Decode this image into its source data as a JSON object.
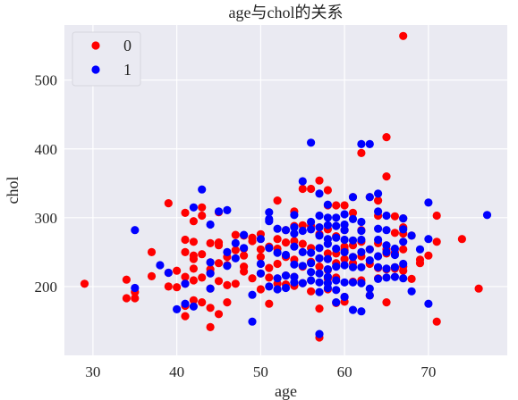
{
  "chart_data": {
    "type": "scatter",
    "title": "age与chol的关系",
    "xlabel": "age",
    "ylabel": "chol",
    "xlim": [
      26.6,
      79.4
    ],
    "ylim": [
      100,
      580
    ],
    "xticks": [
      30,
      40,
      50,
      60,
      70
    ],
    "yticks": [
      200,
      300,
      400,
      500
    ],
    "grid": true,
    "legend_position": "top-left",
    "series": [
      {
        "name": "0",
        "color": "#ff0000",
        "points": [
          [
            29,
            204
          ],
          [
            34,
            210
          ],
          [
            34,
            183
          ],
          [
            35,
            183
          ],
          [
            35,
            192
          ],
          [
            37,
            250
          ],
          [
            37,
            215
          ],
          [
            39,
            321
          ],
          [
            39,
            220
          ],
          [
            39,
            200
          ],
          [
            40,
            223
          ],
          [
            40,
            199
          ],
          [
            41,
            307
          ],
          [
            41,
            268
          ],
          [
            41,
            250
          ],
          [
            41,
            214
          ],
          [
            41,
            204
          ],
          [
            41,
            172
          ],
          [
            41,
            157
          ],
          [
            42,
            295
          ],
          [
            42,
            265
          ],
          [
            42,
            245
          ],
          [
            42,
            240
          ],
          [
            42,
            226
          ],
          [
            42,
            209
          ],
          [
            42,
            180
          ],
          [
            43,
            315
          ],
          [
            43,
            303
          ],
          [
            43,
            247
          ],
          [
            43,
            213
          ],
          [
            43,
            177
          ],
          [
            44,
            263
          ],
          [
            44,
            235
          ],
          [
            44,
            225
          ],
          [
            44,
            220
          ],
          [
            44,
            197
          ],
          [
            44,
            169
          ],
          [
            44,
            141
          ],
          [
            45,
            308
          ],
          [
            45,
            264
          ],
          [
            45,
            260
          ],
          [
            45,
            234
          ],
          [
            45,
            208
          ],
          [
            45,
            160
          ],
          [
            46,
            243
          ],
          [
            46,
            231
          ],
          [
            46,
            202
          ],
          [
            46,
            177
          ],
          [
            47,
            275
          ],
          [
            47,
            253
          ],
          [
            47,
            204
          ],
          [
            48,
            274
          ],
          [
            48,
            255
          ],
          [
            48,
            245
          ],
          [
            48,
            229
          ],
          [
            48,
            222
          ],
          [
            49,
            271
          ],
          [
            49,
            266
          ],
          [
            49,
            212
          ],
          [
            50,
            276
          ],
          [
            50,
            254
          ],
          [
            50,
            243
          ],
          [
            50,
            219
          ],
          [
            50,
            196
          ],
          [
            51,
            258
          ],
          [
            51,
            227
          ],
          [
            51,
            213
          ],
          [
            51,
            175
          ],
          [
            52,
            325
          ],
          [
            52,
            269
          ],
          [
            52,
            255
          ],
          [
            52,
            233
          ],
          [
            52,
            204
          ],
          [
            53,
            282
          ],
          [
            53,
            264
          ],
          [
            53,
            243
          ],
          [
            53,
            216
          ],
          [
            53,
            203
          ],
          [
            54,
            309
          ],
          [
            54,
            288
          ],
          [
            54,
            266
          ],
          [
            54,
            239
          ],
          [
            54,
            214
          ],
          [
            54,
            201
          ],
          [
            55,
            342
          ],
          [
            55,
            289
          ],
          [
            55,
            262
          ],
          [
            55,
            229
          ],
          [
            55,
            205
          ],
          [
            56,
            342
          ],
          [
            56,
            288
          ],
          [
            56,
            256
          ],
          [
            56,
            236
          ],
          [
            56,
            193
          ],
          [
            57,
            354
          ],
          [
            57,
            276
          ],
          [
            57,
            241
          ],
          [
            57,
            229
          ],
          [
            57,
            168
          ],
          [
            57,
            126
          ],
          [
            58,
            340
          ],
          [
            58,
            318
          ],
          [
            58,
            283
          ],
          [
            58,
            248
          ],
          [
            58,
            224
          ],
          [
            58,
            211
          ],
          [
            58,
            196
          ],
          [
            59,
            318
          ],
          [
            59,
            273
          ],
          [
            59,
            248
          ],
          [
            59,
            234
          ],
          [
            59,
            213
          ],
          [
            59,
            176
          ],
          [
            60,
            318
          ],
          [
            60,
            282
          ],
          [
            60,
            258
          ],
          [
            60,
            253
          ],
          [
            60,
            240
          ],
          [
            60,
            185
          ],
          [
            60,
            178
          ],
          [
            61,
            330
          ],
          [
            61,
            307
          ],
          [
            61,
            260
          ],
          [
            61,
            243
          ],
          [
            61,
            234
          ],
          [
            61,
            207
          ],
          [
            62,
            394
          ],
          [
            62,
            282
          ],
          [
            62,
            265
          ],
          [
            62,
            244
          ],
          [
            62,
            209
          ],
          [
            63,
            330
          ],
          [
            63,
            254
          ],
          [
            63,
            233
          ],
          [
            63,
            187
          ],
          [
            64,
            325
          ],
          [
            64,
            303
          ],
          [
            64,
            263
          ],
          [
            64,
            227
          ],
          [
            64,
            212
          ],
          [
            65,
            417
          ],
          [
            65,
            360
          ],
          [
            65,
            254
          ],
          [
            65,
            248
          ],
          [
            65,
            225
          ],
          [
            65,
            177
          ],
          [
            66,
            302
          ],
          [
            66,
            278
          ],
          [
            66,
            249
          ],
          [
            66,
            228
          ],
          [
            66,
            226
          ],
          [
            67,
            564
          ],
          [
            67,
            299
          ],
          [
            67,
            286
          ],
          [
            67,
            277
          ],
          [
            67,
            254
          ],
          [
            67,
            229
          ],
          [
            67,
            223
          ],
          [
            68,
            274
          ],
          [
            68,
            211
          ],
          [
            69,
            239
          ],
          [
            69,
            234
          ],
          [
            70,
            245
          ],
          [
            71,
            303
          ],
          [
            71,
            265
          ],
          [
            71,
            149
          ],
          [
            74,
            269
          ],
          [
            76,
            197
          ]
        ]
      },
      {
        "name": "1",
        "color": "#0000ff",
        "points": [
          [
            35,
            282
          ],
          [
            35,
            198
          ],
          [
            38,
            231
          ],
          [
            39,
            220
          ],
          [
            40,
            167
          ],
          [
            41,
            204
          ],
          [
            41,
            175
          ],
          [
            42,
            315
          ],
          [
            42,
            171
          ],
          [
            43,
            341
          ],
          [
            44,
            290
          ],
          [
            44,
            235
          ],
          [
            44,
            219
          ],
          [
            44,
            197
          ],
          [
            45,
            309
          ],
          [
            46,
            311
          ],
          [
            46,
            250
          ],
          [
            46,
            230
          ],
          [
            47,
            263
          ],
          [
            47,
            241
          ],
          [
            48,
            275
          ],
          [
            48,
            256
          ],
          [
            49,
            188
          ],
          [
            49,
            149
          ],
          [
            50,
            269
          ],
          [
            50,
            233
          ],
          [
            50,
            219
          ],
          [
            51,
            308
          ],
          [
            51,
            298
          ],
          [
            51,
            295
          ],
          [
            51,
            256
          ],
          [
            51,
            200
          ],
          [
            52,
            284
          ],
          [
            52,
            249
          ],
          [
            52,
            212
          ],
          [
            52,
            196
          ],
          [
            53,
            282
          ],
          [
            53,
            246
          ],
          [
            53,
            216
          ],
          [
            53,
            198
          ],
          [
            54,
            304
          ],
          [
            54,
            286
          ],
          [
            54,
            277
          ],
          [
            54,
            258
          ],
          [
            54,
            232
          ],
          [
            54,
            214
          ],
          [
            54,
            206
          ],
          [
            55,
            353
          ],
          [
            55,
            281
          ],
          [
            55,
            250
          ],
          [
            55,
            230
          ],
          [
            55,
            205
          ],
          [
            56,
            409
          ],
          [
            56,
            294
          ],
          [
            56,
            283
          ],
          [
            56,
            249
          ],
          [
            56,
            234
          ],
          [
            56,
            221
          ],
          [
            56,
            209
          ],
          [
            57,
            335
          ],
          [
            57,
            303
          ],
          [
            57,
            286
          ],
          [
            57,
            274
          ],
          [
            57,
            256
          ],
          [
            57,
            241
          ],
          [
            57,
            219
          ],
          [
            57,
            206
          ],
          [
            57,
            192
          ],
          [
            57,
            131
          ],
          [
            58,
            319
          ],
          [
            58,
            300
          ],
          [
            58,
            289
          ],
          [
            58,
            269
          ],
          [
            58,
            262
          ],
          [
            58,
            240
          ],
          [
            58,
            225
          ],
          [
            58,
            214
          ],
          [
            58,
            205
          ],
          [
            58,
            198
          ],
          [
            59,
            300
          ],
          [
            59,
            288
          ],
          [
            59,
            271
          ],
          [
            59,
            255
          ],
          [
            59,
            229
          ],
          [
            59,
            209
          ],
          [
            59,
            195
          ],
          [
            59,
            177
          ],
          [
            60,
            305
          ],
          [
            60,
            290
          ],
          [
            60,
            282
          ],
          [
            60,
            268
          ],
          [
            60,
            250
          ],
          [
            60,
            231
          ],
          [
            60,
            206
          ],
          [
            60,
            185
          ],
          [
            61,
            330
          ],
          [
            61,
            298
          ],
          [
            61,
            267
          ],
          [
            61,
            243
          ],
          [
            61,
            228
          ],
          [
            61,
            206
          ],
          [
            61,
            166
          ],
          [
            62,
            407
          ],
          [
            62,
            294
          ],
          [
            62,
            281
          ],
          [
            62,
            268
          ],
          [
            62,
            250
          ],
          [
            62,
            228
          ],
          [
            62,
            205
          ],
          [
            62,
            164
          ],
          [
            63,
            407
          ],
          [
            63,
            330
          ],
          [
            63,
            254
          ],
          [
            63,
            238
          ],
          [
            63,
            197
          ],
          [
            63,
            187
          ],
          [
            64,
            335
          ],
          [
            64,
            309
          ],
          [
            64,
            284
          ],
          [
            64,
            268
          ],
          [
            64,
            244
          ],
          [
            64,
            228
          ],
          [
            64,
            211
          ],
          [
            65,
            303
          ],
          [
            65,
            282
          ],
          [
            65,
            260
          ],
          [
            65,
            250
          ],
          [
            65,
            226
          ],
          [
            65,
            213
          ],
          [
            66,
            255
          ],
          [
            66,
            246
          ],
          [
            66,
            228
          ],
          [
            66,
            214
          ],
          [
            67,
            299
          ],
          [
            67,
            283
          ],
          [
            67,
            265
          ],
          [
            67,
            233
          ],
          [
            67,
            212
          ],
          [
            68,
            274
          ],
          [
            68,
            193
          ],
          [
            69,
            254
          ],
          [
            70,
            322
          ],
          [
            70,
            269
          ],
          [
            70,
            175
          ],
          [
            77,
            304
          ]
        ]
      }
    ]
  }
}
